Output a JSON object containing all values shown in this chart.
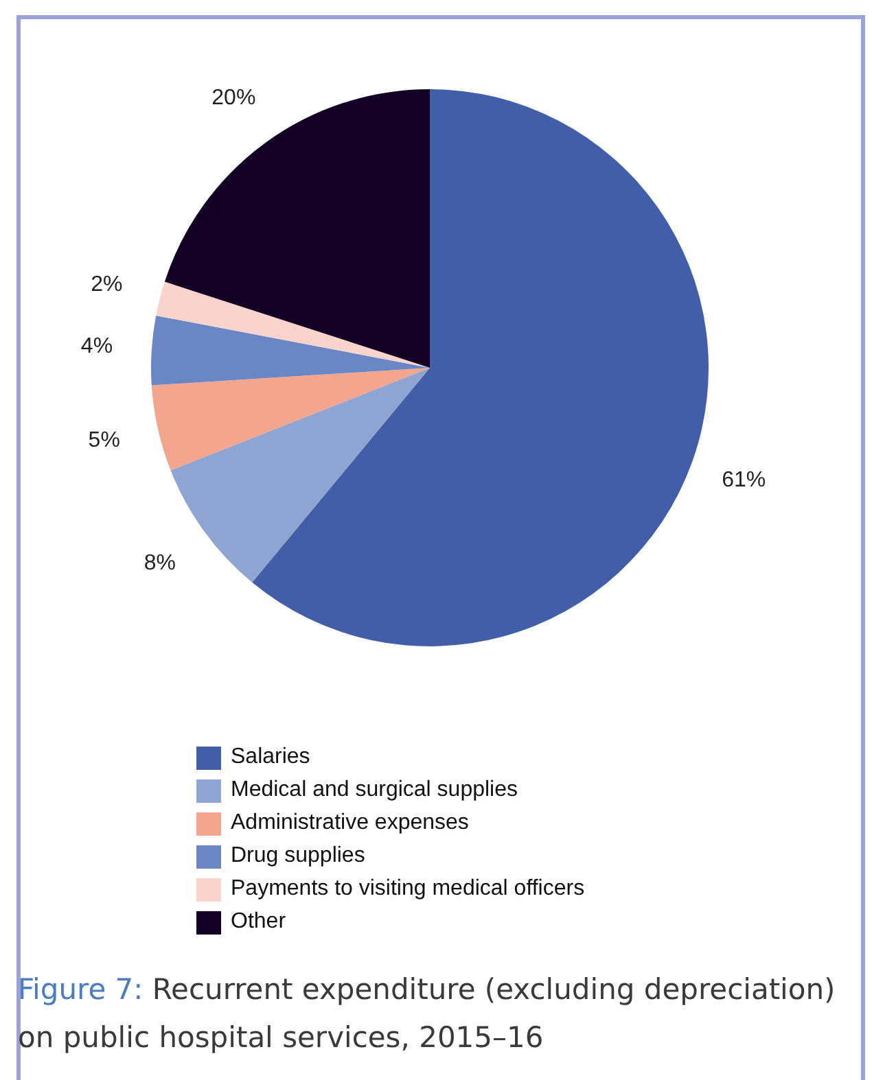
{
  "chart_data": {
    "type": "pie",
    "title": "Figure 7: Recurrent expenditure (excluding depreciation) on public hospital services, 2015–16",
    "categories": [
      "Salaries",
      "Medical and surgical supplies",
      "Administrative expenses",
      "Drug supplies",
      "Payments to visiting medical officers",
      "Other"
    ],
    "values": [
      61,
      8,
      5,
      4,
      2,
      20
    ],
    "colors": [
      "#435ea8",
      "#8ea5d4",
      "#f4a58e",
      "#6b86c4",
      "#fad4cc",
      "#150025"
    ],
    "value_labels": [
      "61%",
      "8%",
      "5%",
      "4%",
      "2%",
      "20%"
    ],
    "legend": "bottom"
  }
}
